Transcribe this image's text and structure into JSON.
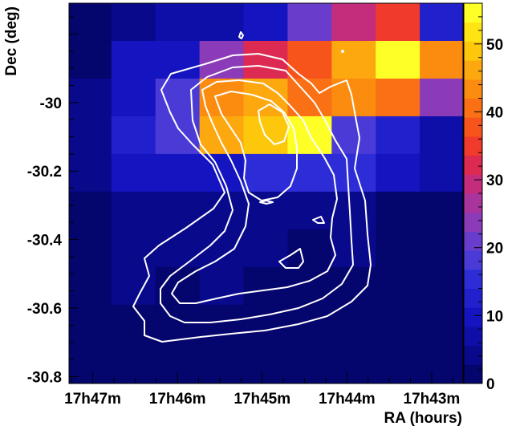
{
  "chart_data": {
    "type": "heatmap",
    "title": "",
    "xlabel": "RA (hours)",
    "ylabel": "Dec (deg)",
    "x_ticks": [
      {
        "ra_min": 47,
        "label": "17h47m"
      },
      {
        "ra_min": 46,
        "label": "17h46m"
      },
      {
        "ra_min": 45,
        "label": "17h45m"
      },
      {
        "ra_min": 44,
        "label": "17h44m"
      },
      {
        "ra_min": 43,
        "label": "17h43m"
      }
    ],
    "y_ticks": [
      {
        "dec": -30.0,
        "label": "-30"
      },
      {
        "dec": -30.2,
        "label": "-30.2"
      },
      {
        "dec": -30.4,
        "label": "-30.4"
      },
      {
        "dec": -30.6,
        "label": "-30.6"
      },
      {
        "dec": -30.8,
        "label": "-30.8"
      }
    ],
    "xlim_ra_min": [
      47.28,
      42.63
    ],
    "ylim_dec": [
      -30.82,
      -29.71
    ],
    "x_bin_edges_ra_min": [
      47.3,
      46.78,
      46.26,
      45.74,
      45.22,
      44.7,
      44.18,
      43.66,
      43.14,
      42.62
    ],
    "y_bin_edges_dec": [
      -30.82,
      -30.7,
      -30.59,
      -30.48,
      -30.37,
      -30.26,
      -30.15,
      -30.04,
      -29.93,
      -29.82,
      -29.71
    ],
    "cell_values_top_row_first": [
      [
        2,
        3,
        6,
        7,
        10,
        22,
        28,
        36,
        12
      ],
      [
        2,
        11,
        10,
        25,
        31,
        37,
        46,
        55,
        43
      ],
      [
        3,
        11,
        19,
        42,
        46,
        41,
        43,
        40,
        25
      ],
      [
        5,
        12,
        18,
        45,
        48,
        55,
        19,
        12,
        8
      ],
      [
        4,
        9,
        10,
        11,
        15,
        16,
        14,
        10,
        8
      ],
      [
        2,
        4,
        3,
        3,
        4,
        5,
        4,
        2,
        2
      ],
      [
        2,
        3,
        3,
        3,
        3,
        2,
        3,
        2,
        2
      ],
      [
        2,
        5,
        2,
        3,
        2,
        2,
        2,
        2,
        2
      ],
      [
        2,
        2,
        2,
        2,
        2,
        2,
        2,
        2,
        2
      ],
      [
        2,
        2,
        2,
        2,
        2,
        2,
        2,
        2,
        2
      ]
    ],
    "colorbar": {
      "min": 0,
      "max": 56,
      "ticks": [
        0,
        10,
        20,
        30,
        40,
        50
      ]
    },
    "contour_levels_drawn": 4,
    "grid": false,
    "legend": "none"
  },
  "colors": {
    "contour": "#ffffff",
    "palette": [
      "#05056e",
      "#09098c",
      "#0e0ea8",
      "#1414c0",
      "#2020cc",
      "#2d2dd8",
      "#4a3ad6",
      "#6a3ccc",
      "#8c3bb8",
      "#a8349c",
      "#c42c7c",
      "#dc2a52",
      "#f03a2c",
      "#f7541c",
      "#fa7014",
      "#fb8c10",
      "#fca80e",
      "#fdc80c",
      "#ffe414",
      "#ffff28"
    ]
  }
}
